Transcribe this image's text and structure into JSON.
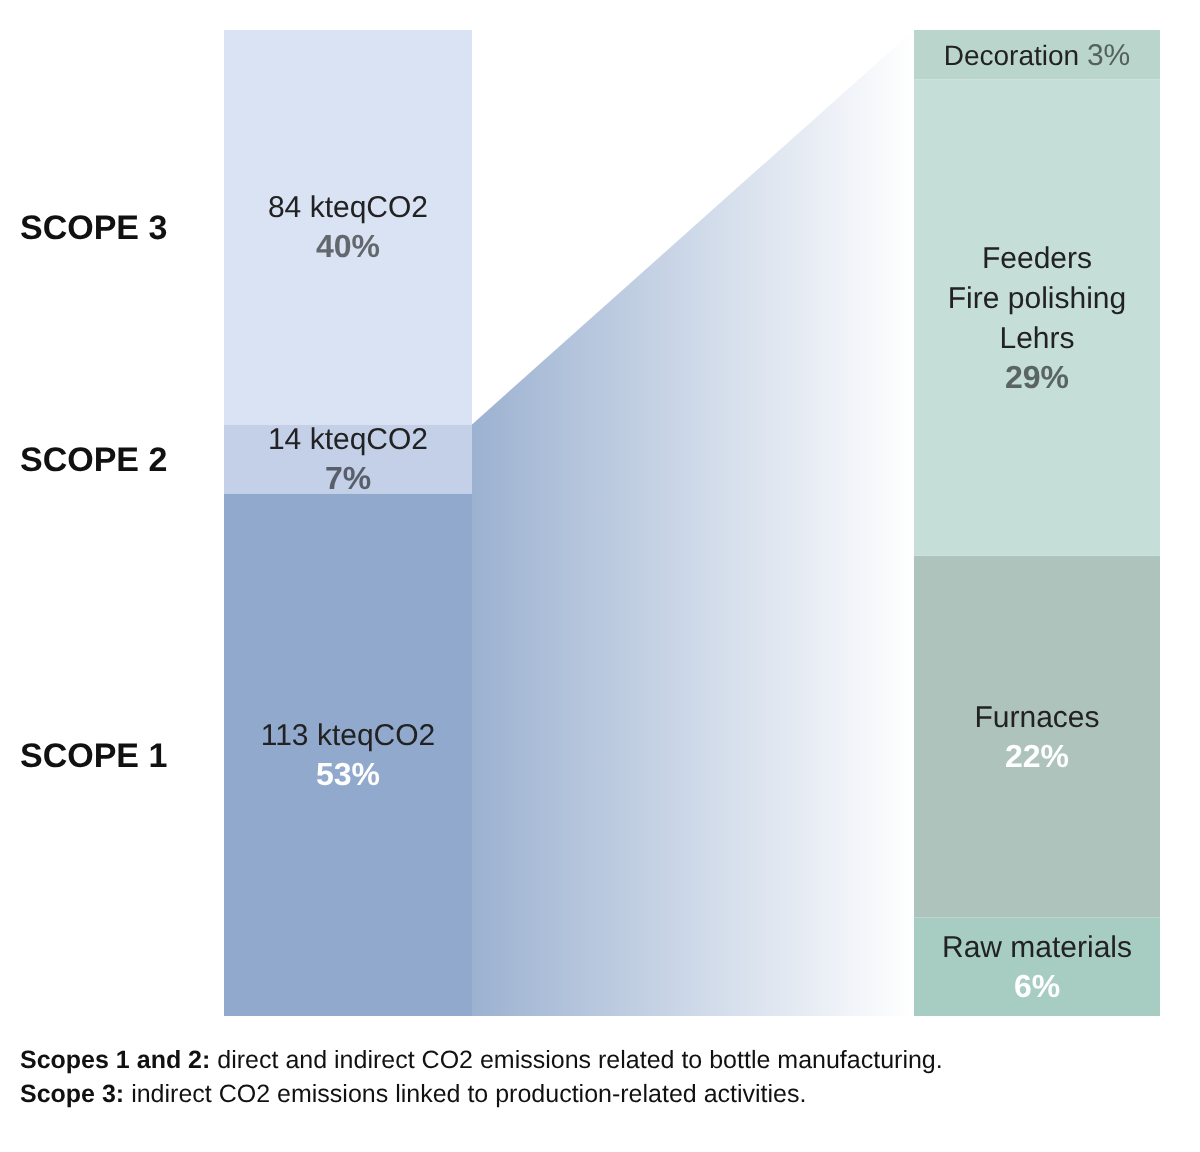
{
  "chart_data": [
    {
      "type": "bar",
      "stacked": true,
      "categories": [
        null
      ],
      "series": [
        {
          "name": "SCOPE 1",
          "color": "#91a9cc",
          "values": [
            53
          ],
          "value_labels": [
            "113 kteqCO2\n53%"
          ]
        },
        {
          "name": "SCOPE 2",
          "color": "#c3d0e8",
          "values": [
            7
          ],
          "value_labels": [
            "14 kteqCO2\n7%"
          ]
        },
        {
          "name": "SCOPE 3",
          "color": "#d9e3f3",
          "values": [
            40
          ],
          "value_labels": [
            "84 kteqCO2\n40%"
          ]
        }
      ],
      "annotations": [
        "Scopes 1 and 2: direct and indirect CO2 emissions related to bottle manufacturing.",
        "Scope 3: indirect CO2 emissions linked to production-related activities."
      ]
    },
    {
      "type": "bar",
      "stacked": true,
      "categories": [
        null
      ],
      "series": [
        {
          "name": "Raw materials",
          "color": "#a7cdc3",
          "values": [
            6
          ],
          "value_labels": [
            "6%"
          ]
        },
        {
          "name": "Furnaces",
          "color": "#adc3bc",
          "values": [
            22
          ],
          "value_labels": [
            "22%"
          ]
        },
        {
          "name": "Feeders\nFire polishing\nLehrs",
          "color": "#c5ded7",
          "values": [
            29
          ],
          "value_labels": [
            "29%"
          ]
        },
        {
          "name": "Decoration",
          "color": "#bad5cc",
          "values": [
            3
          ],
          "value_labels": [
            "3%"
          ]
        }
      ]
    }
  ]
}
